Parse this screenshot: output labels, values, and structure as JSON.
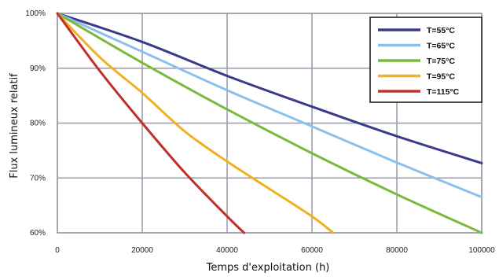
{
  "chart_data": {
    "type": "line",
    "xlabel": "Temps d'exploitation (h)",
    "ylabel": "Flux lumineux relatif",
    "xlim": [
      0,
      100000
    ],
    "ylim": [
      60,
      100
    ],
    "x_ticks": [
      0,
      20000,
      40000,
      60000,
      80000,
      100000
    ],
    "x_tick_labels": [
      "0",
      "20000",
      "40000",
      "60000",
      "80000",
      "100000"
    ],
    "y_ticks": [
      60,
      70,
      80,
      90,
      100
    ],
    "y_tick_labels": [
      "60%",
      "70%",
      "80%",
      "90%",
      "100%"
    ],
    "grid": true,
    "legend_position": "top-right",
    "series": [
      {
        "name": "T=55°C",
        "color": "#3a3a8c",
        "x": [
          0,
          20000,
          40000,
          60000,
          80000,
          100000
        ],
        "y": [
          100,
          94.8,
          88.6,
          83.0,
          77.6,
          72.7
        ]
      },
      {
        "name": "T=65°C",
        "color": "#8cc0ec",
        "x": [
          0,
          20000,
          40000,
          60000,
          80000,
          100000
        ],
        "y": [
          100,
          93.0,
          86.0,
          79.4,
          72.8,
          66.5
        ]
      },
      {
        "name": "T=75°C",
        "color": "#7bb93b",
        "x": [
          0,
          20000,
          40000,
          60000,
          80000,
          100000
        ],
        "y": [
          100,
          91.0,
          82.5,
          74.5,
          67.0,
          60.0
        ]
      },
      {
        "name": "T=95°C",
        "color": "#f0b020",
        "x": [
          0,
          10000,
          20000,
          30000,
          40000,
          50000,
          60000,
          65000
        ],
        "y": [
          100,
          92.0,
          85.5,
          78.5,
          73.0,
          68.0,
          63.0,
          60.0
        ]
      },
      {
        "name": "T=115°C",
        "color": "#c0302a",
        "x": [
          0,
          10000,
          20000,
          30000,
          40000,
          44000
        ],
        "y": [
          100,
          89.5,
          80.0,
          71.0,
          63.0,
          60.0
        ]
      }
    ]
  }
}
